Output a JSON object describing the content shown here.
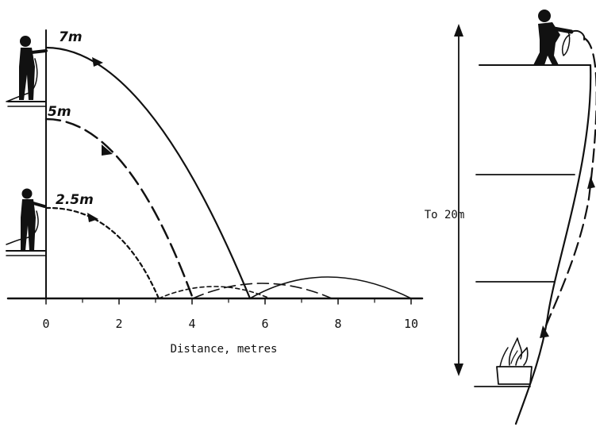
{
  "left_diagram": {
    "heights": [
      {
        "label": "7m",
        "style": "solid"
      },
      {
        "label": "5m",
        "style": "long-dash"
      },
      {
        "label": "2.5m",
        "style": "short-dash"
      }
    ],
    "x_ticks": [
      "0",
      "2",
      "4",
      "6",
      "8",
      "10"
    ],
    "x_axis_label": "Distance, metres"
  },
  "right_diagram": {
    "height_label": "To 20m"
  },
  "icons": [
    "firefighter-with-hose-icon",
    "fire-icon"
  ]
}
